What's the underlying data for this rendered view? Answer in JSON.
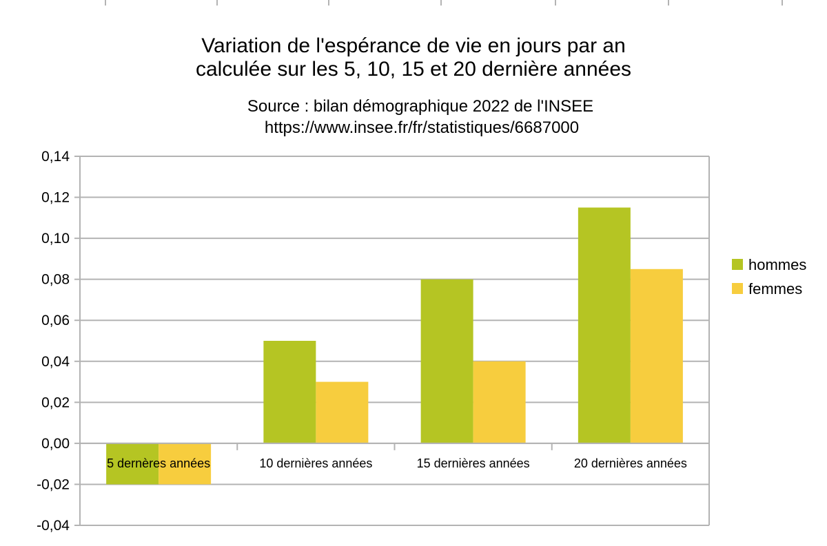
{
  "chart_data": {
    "type": "bar",
    "title_lines": [
      "Variation de l'espérance de vie en jours par an",
      "calculée sur les 5, 10, 15 et 20 dernière années"
    ],
    "subtitle_lines": [
      "Source : bilan démographique 2022 de l'INSEE",
      "https://www.insee.fr/fr/statistiques/6687000"
    ],
    "categories": [
      "5 dernères années",
      "10 dernières années",
      "15 dernières années",
      "20 dernières années"
    ],
    "series": [
      {
        "name": "hommes",
        "color": "#b5c523",
        "values": [
          -0.02,
          0.05,
          0.08,
          0.115
        ]
      },
      {
        "name": "femmes",
        "color": "#f7cd3e",
        "values": [
          -0.02,
          0.03,
          0.04,
          0.085
        ]
      }
    ],
    "ylim": [
      -0.04,
      0.14
    ],
    "yticks": [
      "0,14",
      "0,12",
      "0,10",
      "0,08",
      "0,06",
      "0,04",
      "0,02",
      "0,00",
      "-0,02",
      "-0,04"
    ],
    "ytick_values": [
      0.14,
      0.12,
      0.1,
      0.08,
      0.06,
      0.04,
      0.02,
      0.0,
      -0.02,
      -0.04
    ],
    "grid": true,
    "legend_position": "right",
    "colors": {
      "grid": "#b3b3b3",
      "axis": "#b3b3b3"
    }
  }
}
